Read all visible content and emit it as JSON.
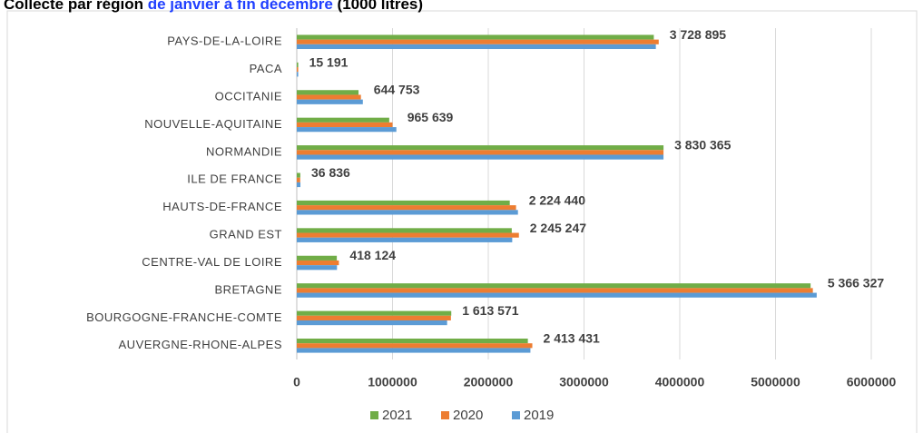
{
  "chart_data": {
    "type": "barh",
    "title": [
      "Collecte  par région",
      "de janvier à fin décembre",
      "(1000 litres)"
    ],
    "categories": [
      "PAYS-DE-LA-LOIRE",
      "PACA",
      "OCCITANIE",
      "NOUVELLE-AQUITAINE",
      "NORMANDIE",
      "ILE DE FRANCE",
      "HAUTS-DE-FRANCE",
      "GRAND EST",
      "CENTRE-VAL DE LOIRE",
      "BRETAGNE",
      "BOURGOGNE-FRANCHE-COMTE",
      "AUVERGNE-RHONE-ALPES"
    ],
    "series": [
      {
        "name": "2021",
        "color": "#70ad47",
        "values": [
          3728895,
          15191,
          644753,
          965639,
          3830365,
          36836,
          2224440,
          2245247,
          418124,
          5366327,
          1613571,
          2413431
        ],
        "value_labels": [
          "3 728 895",
          "15 191",
          "644 753",
          "965 639",
          "3 830 365",
          "36 836",
          "2 224 440",
          "2 245 247",
          "418 124",
          "5 366 327",
          "1 613 571",
          "2 413 431"
        ]
      },
      {
        "name": "2020",
        "color": "#ed7d31",
        "values": [
          3780000,
          15000,
          670000,
          1000000,
          3830000,
          36000,
          2290000,
          2320000,
          440000,
          5390000,
          1610000,
          2460000
        ]
      },
      {
        "name": "2019",
        "color": "#5b9bd5",
        "values": [
          3750000,
          15000,
          690000,
          1040000,
          3830000,
          38000,
          2310000,
          2250000,
          420000,
          5430000,
          1570000,
          2440000
        ]
      }
    ],
    "xlim": [
      0,
      6000000
    ],
    "xticks": [
      0,
      1000000,
      2000000,
      3000000,
      4000000,
      5000000,
      6000000
    ],
    "grid": true
  }
}
